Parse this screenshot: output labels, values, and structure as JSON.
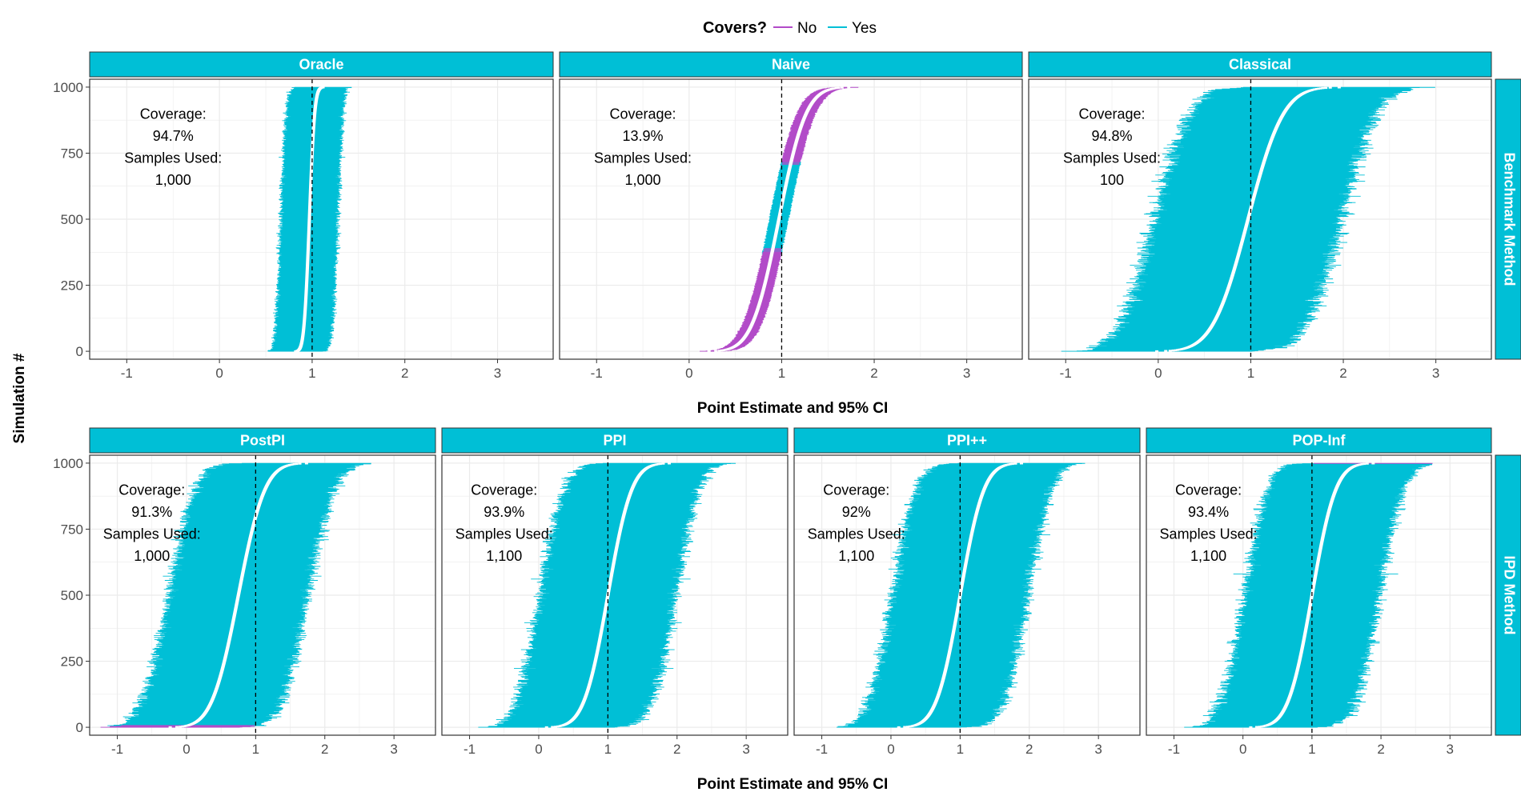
{
  "legend": {
    "title": "Covers?",
    "entries": [
      {
        "label": "No",
        "color": "#B24BC8"
      },
      {
        "label": "Yes",
        "color": "#00BFD6"
      }
    ]
  },
  "x_axis_title": "Point Estimate and 95% CI",
  "y_axis_title": "Simulation #",
  "row_labels": [
    "Benchmark Method",
    "IPD Method"
  ],
  "colors": {
    "strip": "#00BFD6",
    "yes": "#00BFD6",
    "no": "#B24BC8",
    "point": "#ffffff",
    "reference_line": "#000000",
    "grid": "#ebebeb"
  },
  "chart_data": [
    {
      "type": "scatter",
      "row": "Benchmark Method",
      "title": "Oracle",
      "coverage_label": "Coverage:",
      "coverage": "94.7%",
      "samples_label": "Samples Used:",
      "samples": "1,000",
      "center": 0.97,
      "spread": 0.045,
      "halfwidth": 0.3,
      "reference_x": 1,
      "xlim": [
        -1.4,
        3.6
      ],
      "ylim": [
        -30,
        1030
      ],
      "x_ticks": [
        -1,
        0,
        1,
        2,
        3
      ],
      "y_ticks": [
        0,
        250,
        500,
        750,
        1000
      ],
      "n_sims": 1000
    },
    {
      "type": "scatter",
      "row": "Benchmark Method",
      "title": "Naive",
      "coverage_label": "Coverage:",
      "coverage": "13.9%",
      "samples_label": "Samples Used:",
      "samples": "1,000",
      "center": 0.97,
      "spread": 0.23,
      "halfwidth": 0.1,
      "reference_x": 1,
      "xlim": [
        -1.4,
        3.6
      ],
      "ylim": [
        -30,
        1030
      ],
      "x_ticks": [
        -1,
        0,
        1,
        2,
        3
      ],
      "y_ticks": [
        0,
        250,
        500,
        750,
        1000
      ],
      "n_sims": 1000
    },
    {
      "type": "scatter",
      "row": "Benchmark Method",
      "title": "Classical",
      "coverage_label": "Coverage:",
      "coverage": "94.8%",
      "samples_label": "Samples Used:",
      "samples": "100",
      "center": 0.97,
      "spread": 0.3,
      "halfwidth": 0.98,
      "reference_x": 1,
      "xlim": [
        -1.4,
        3.6
      ],
      "ylim": [
        -30,
        1030
      ],
      "x_ticks": [
        -1,
        0,
        1,
        2,
        3
      ],
      "y_ticks": [
        0,
        250,
        500,
        750,
        1000
      ],
      "n_sims": 1000
    },
    {
      "type": "scatter",
      "row": "IPD Method",
      "title": "PostPI",
      "coverage_label": "Coverage:",
      "coverage": "91.3%",
      "samples_label": "Samples Used:",
      "samples": "1,000",
      "center": 0.75,
      "spread": 0.3,
      "halfwidth": 0.98,
      "reference_x": 1,
      "xlim": [
        -1.4,
        3.6
      ],
      "ylim": [
        -30,
        1030
      ],
      "x_ticks": [
        -1,
        0,
        1,
        2,
        3
      ],
      "y_ticks": [
        0,
        250,
        500,
        750,
        1000
      ],
      "n_sims": 1000
    },
    {
      "type": "scatter",
      "row": "IPD Method",
      "title": "PPI",
      "coverage_label": "Coverage:",
      "coverage": "93.9%",
      "samples_label": "Samples Used:",
      "samples": "1,100",
      "center": 1.0,
      "spread": 0.27,
      "halfwidth": 0.95,
      "reference_x": 1,
      "xlim": [
        -1.4,
        3.6
      ],
      "ylim": [
        -30,
        1030
      ],
      "x_ticks": [
        -1,
        0,
        1,
        2,
        3
      ],
      "y_ticks": [
        0,
        250,
        500,
        750,
        1000
      ],
      "n_sims": 1000
    },
    {
      "type": "scatter",
      "row": "IPD Method",
      "title": "PPI++",
      "coverage_label": "Coverage:",
      "coverage": "92%",
      "samples_label": "Samples Used:",
      "samples": "1,100",
      "center": 1.0,
      "spread": 0.27,
      "halfwidth": 0.95,
      "reference_x": 1,
      "xlim": [
        -1.4,
        3.6
      ],
      "ylim": [
        -30,
        1030
      ],
      "x_ticks": [
        -1,
        0,
        1,
        2,
        3
      ],
      "y_ticks": [
        0,
        250,
        500,
        750,
        1000
      ],
      "n_sims": 1000
    },
    {
      "type": "scatter",
      "row": "IPD Method",
      "title": "POP-Inf",
      "coverage_label": "Coverage:",
      "coverage": "93.4%",
      "samples_label": "Samples Used:",
      "samples": "1,100",
      "center": 1.0,
      "spread": 0.27,
      "halfwidth": 0.95,
      "reference_x": 1,
      "xlim": [
        -1.4,
        3.6
      ],
      "ylim": [
        -30,
        1030
      ],
      "x_ticks": [
        -1,
        0,
        1,
        2,
        3
      ],
      "y_ticks": [
        0,
        250,
        500,
        750,
        1000
      ],
      "n_sims": 1000
    }
  ]
}
